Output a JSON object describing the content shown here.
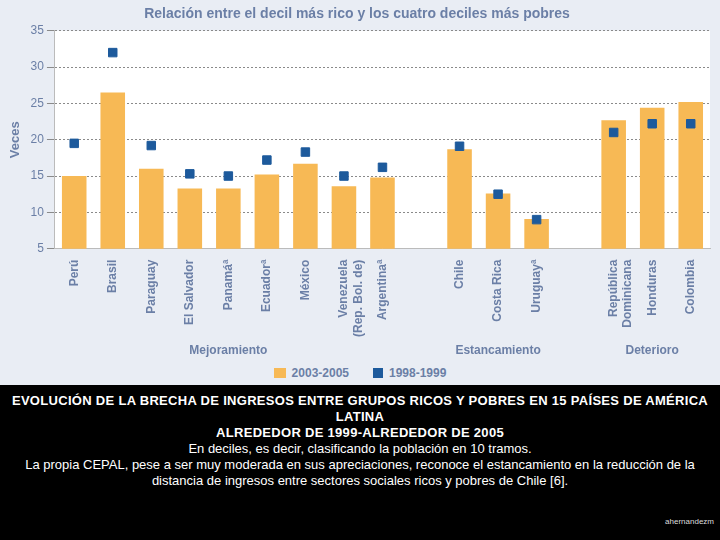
{
  "chart_data": {
    "type": "bar",
    "title": "Relación entre el decil más rico y los cuatro deciles más pobres",
    "y_label": "Veces",
    "categories": [
      "Perú",
      "Brasil",
      "Paraguay",
      "El Salvador",
      "Panamáª",
      "Ecuadorª",
      "México",
      "Venezuela (Rep. Bol. de)",
      "Argentinaª",
      null,
      "Chile",
      "Costa Rica",
      "Uruguayª",
      null,
      "República Dominicana",
      "Honduras",
      "Colombia"
    ],
    "series": [
      {
        "name": "2003-2005",
        "type": "bar",
        "color": "#f7b955",
        "values": [
          15,
          26.5,
          16,
          13.3,
          13.3,
          15.2,
          16.7,
          13.6,
          14.8,
          null,
          18.7,
          12.6,
          9.1,
          null,
          22.7,
          24.4,
          25.2
        ]
      },
      {
        "name": "1998-1999",
        "type": "scatter",
        "marker": "square",
        "color": "#1d5a9c",
        "values": [
          19.5,
          32,
          19.2,
          15.3,
          15,
          17.2,
          18.3,
          15,
          16.2,
          null,
          19.1,
          12.5,
          9,
          null,
          21,
          22.2,
          22.2
        ]
      }
    ],
    "annotations": [
      {
        "text": "Mejoramiento",
        "from": "Perú",
        "to": "Argentinaª"
      },
      {
        "text": "Estancamiento",
        "from": "Chile",
        "to": "Uruguayª"
      },
      {
        "text": "Deterioro",
        "from": "República Dominicana",
        "to": "Colombia"
      }
    ],
    "ylim": [
      5,
      35
    ],
    "yticks": [
      5,
      10,
      15,
      20,
      25,
      30,
      35
    ],
    "grid": true,
    "legend": "bottom"
  },
  "caption": {
    "heading": [
      "EVOLUCIÓN DE LA BRECHA DE INGRESOS ENTRE GRUPOS RICOS Y POBRES EN 15 PAÍSES DE AMÉRICA LATINA",
      "ALREDEDOR DE 1999-ALREDEDOR DE 2005"
    ],
    "text": [
      "En deciles, es decir, clasificando la población en 10 tramos.",
      "La propia CEPAL, pese a ser muy moderada en sus apreciaciones, reconoce el estancamiento en la reducción de la distancia de ingresos entre sectores sociales ricos y pobres de Chile [6]."
    ],
    "credit": "ahernandezm"
  }
}
